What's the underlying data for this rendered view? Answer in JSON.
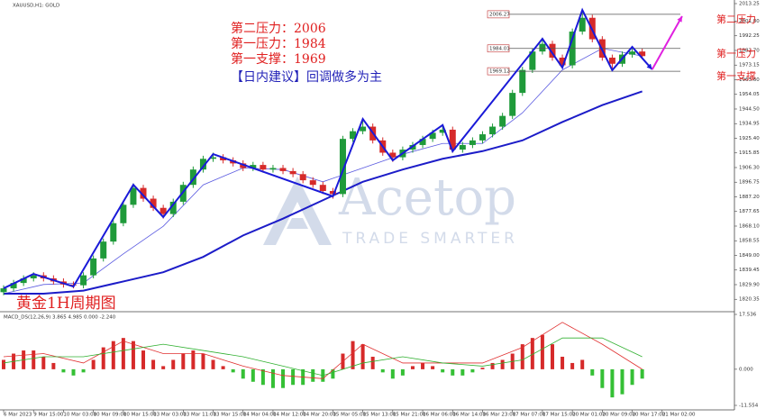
{
  "chart_data": [
    {
      "type": "candlestick",
      "title": "XAUUSD,H1: GOLD",
      "xlim": [
        0,
        69
      ],
      "xticks": [
        {
          "value": 0,
          "label": "6 Mar 2023"
        },
        {
          "value": 3,
          "label": "9 Mar 15:00"
        },
        {
          "value": 6,
          "label": "10 Mar 03:00"
        },
        {
          "value": 9,
          "label": "10 Mar 09:00"
        },
        {
          "value": 12,
          "label": "10 Mar 15:00"
        },
        {
          "value": 15,
          "label": "13 Mar 03:00"
        },
        {
          "value": 18,
          "label": "13 Mar 11:00"
        },
        {
          "value": 21,
          "label": "13 Mar 15:00"
        },
        {
          "value": 24,
          "label": "14 Mar 04:00"
        },
        {
          "value": 27,
          "label": "14 Mar 12:00"
        },
        {
          "value": 30,
          "label": "14 Mar 20:00"
        },
        {
          "value": 33,
          "label": "15 Mar 05:00"
        },
        {
          "value": 36,
          "label": "15 Mar 13:00"
        },
        {
          "value": 39,
          "label": "15 Mar 21:00"
        },
        {
          "value": 42,
          "label": "16 Mar 06:00"
        },
        {
          "value": 45,
          "label": "16 Mar 14:00"
        },
        {
          "value": 48,
          "label": "16 Mar 23:00"
        },
        {
          "value": 51,
          "label": "17 Mar 07:00"
        },
        {
          "value": 54,
          "label": "17 Mar 15:00"
        },
        {
          "value": 57,
          "label": "20 Mar 01:00"
        },
        {
          "value": 60,
          "label": "20 Mar 09:00"
        },
        {
          "value": 63,
          "label": "20 Mar 17:00"
        },
        {
          "value": 66,
          "label": "21 Mar 02:00"
        }
      ],
      "ylim": [
        1812.85,
        2013.25
      ],
      "yticks": [
        2013.25,
        {
          "value": 2001.8,
          "label": "2001.80"
        },
        1992.25,
        {
          "value": 1982.7,
          "label": "1982.70"
        },
        1973.15,
        {
          "value": 1963.6,
          "label": "1963.60"
        },
        1954.05,
        {
          "value": 1944.5,
          "label": "1944.50"
        },
        1934.95,
        {
          "value": 1925.4,
          "label": "1925.40"
        },
        1915.85,
        {
          "value": 1906.3,
          "label": "1906.30"
        },
        1896.75,
        {
          "value": 1887.2,
          "label": "1887.20"
        },
        1877.65,
        {
          "value": 1868.1,
          "label": "1868.10"
        },
        1858.55,
        {
          "value": 1849,
          "label": "1849.00"
        },
        1839.45,
        {
          "value": 1829.9,
          "label": "1829.90"
        },
        1820.35
      ],
      "up_color": "#1f9a3a",
      "down_color": "#d62a2a",
      "open": [
        1825,
        1827.5,
        1831,
        1834,
        1836,
        1834,
        1832,
        1830,
        1829.5,
        1836,
        1847,
        1858,
        1870,
        1882,
        1893,
        1886,
        1880,
        1876,
        1884,
        1895,
        1905,
        1912,
        1913,
        1911,
        1909,
        1906,
        1908,
        1905,
        1906,
        1904,
        1902,
        1898,
        1895,
        1891,
        1889,
        1925,
        1930,
        1933,
        1924,
        1916,
        1913,
        1918,
        1921,
        1925,
        1929,
        1931,
        1918,
        1921,
        1924,
        1928,
        1933,
        1940,
        1955,
        1970,
        1982,
        1987,
        1978,
        1973,
        1995,
        2004,
        1990,
        1978,
        1974,
        1980,
        1982
      ],
      "close": [
        1827.5,
        1831,
        1834,
        1836,
        1834,
        1832,
        1830,
        1829.5,
        1836,
        1847,
        1858,
        1870,
        1882,
        1893,
        1886,
        1880,
        1876,
        1884,
        1895,
        1905,
        1912,
        1913,
        1911,
        1909,
        1906,
        1908,
        1905,
        1906,
        1904,
        1902,
        1898,
        1895,
        1891,
        1889,
        1925,
        1930,
        1933,
        1924,
        1916,
        1913,
        1918,
        1921,
        1925,
        1929,
        1931,
        1918,
        1921,
        1924,
        1928,
        1933,
        1940,
        1955,
        1970,
        1982,
        1987,
        1978,
        1973,
        1995,
        2004,
        1990,
        1978,
        1974,
        1980,
        1982,
        1979
      ],
      "high": [
        1829.5,
        1833,
        1836,
        1838,
        1838,
        1836,
        1834,
        1832,
        1838,
        1849,
        1860,
        1872,
        1884,
        1896,
        1895,
        1888,
        1882,
        1886,
        1897,
        1907,
        1914,
        1916,
        1915,
        1913,
        1911,
        1910,
        1910,
        1908,
        1908,
        1906,
        1904,
        1900,
        1897,
        1893,
        1927,
        1932,
        1938,
        1935,
        1926,
        1918,
        1920,
        1923,
        1927,
        1931,
        1934,
        1933,
        1923,
        1926,
        1930,
        1935,
        1942,
        1957,
        1972,
        1984,
        1991,
        1989,
        1980,
        1997,
        2009,
        2006,
        1992,
        1980,
        1982,
        1985,
        1984
      ],
      "low": [
        1823,
        1825.5,
        1829,
        1832,
        1832,
        1830,
        1828,
        1827.5,
        1827.5,
        1834,
        1845,
        1856,
        1868,
        1880,
        1884,
        1878,
        1873,
        1874,
        1882,
        1893,
        1903,
        1910,
        1909,
        1907,
        1904,
        1904,
        1903,
        1903,
        1902,
        1900,
        1896,
        1893,
        1889,
        1886,
        1887,
        1923,
        1928,
        1922,
        1914,
        1910,
        1911,
        1916,
        1919,
        1923,
        1927,
        1916,
        1916,
        1919,
        1922,
        1926,
        1931,
        1938,
        1953,
        1968,
        1980,
        1976,
        1971,
        1971,
        1993,
        1988,
        1976,
        1970,
        1972,
        1978,
        1977
      ],
      "moving_averages": [
        {
          "color": "#5a5ae0",
          "width": 0.8,
          "x": [
            0,
            4,
            8,
            12,
            16,
            20,
            24,
            28,
            32,
            36,
            40,
            44,
            48,
            52,
            56,
            60,
            64
          ],
          "values": [
            1824,
            1830,
            1831,
            1850,
            1868,
            1895,
            1906,
            1905,
            1897,
            1906,
            1915,
            1922,
            1922,
            1942,
            1970,
            1984,
            1979
          ]
        },
        {
          "color": "#1c1cc8",
          "width": 2,
          "x": [
            0,
            4,
            8,
            12,
            16,
            20,
            24,
            28,
            32,
            36,
            40,
            44,
            48,
            52,
            56,
            60,
            64
          ],
          "values": [
            1824,
            1824,
            1826,
            1832,
            1838,
            1848,
            1862,
            1873,
            1885,
            1897,
            1905,
            1912,
            1917,
            1924,
            1936,
            1947,
            1956
          ]
        }
      ],
      "zigzag": {
        "color": "#1a1ad8",
        "x": [
          0,
          3,
          7,
          13,
          16,
          21,
          33,
          36,
          39,
          44,
          45,
          54,
          56,
          58,
          61,
          63,
          65
        ],
        "values": [
          1827.5,
          1836.9,
          1828.7,
          1895.1,
          1874,
          1915.1,
          1887.5,
          1938,
          1911,
          1934,
          1916.9,
          1990.3,
          1971.5,
          2009.1,
          1969.8,
          1985,
          1970.3
        ]
      },
      "forecast": {
        "color": "#e020e0",
        "x": [
          65,
          68
        ],
        "values": [
          1970.3,
          2005
        ]
      },
      "levels": [
        {
          "value": 2006.27,
          "label": "2006.27",
          "name": "第二压力"
        },
        {
          "value": 1984.01,
          "label": "1984.01",
          "name": "第一压力"
        },
        {
          "value": 1969.12,
          "label": "1969.12",
          "name": "第一支撑"
        }
      ],
      "annotations": [
        "第二压力：2006",
        "第一压力：1984",
        "第一支撑：1969"
      ],
      "advice": "【日内建议】回调做多为主",
      "caption": "黄金1H周期图",
      "watermark": [
        "Acetop",
        "TRADE SMARTER"
      ]
    },
    {
      "type": "macd",
      "title": "MACD_DS(12,26,9) 3.865 4.985 0.000 -2.240",
      "xlim": [
        0,
        69
      ],
      "ylim": [
        -11.554,
        17.536
      ],
      "yticks": [
        17.536,
        {
          "value": 0,
          "label": "0.000"
        },
        -11.554
      ],
      "up_color": "#d62a2a",
      "down_color": "#35c035",
      "values": [
        3,
        5,
        6,
        6,
        4,
        2,
        -1,
        -2,
        -1,
        3,
        7,
        9,
        10,
        9,
        6,
        3,
        1,
        3,
        5,
        6,
        5,
        3,
        1,
        -1,
        -3,
        -4,
        -5,
        -6,
        -6,
        -5,
        -5,
        -4,
        -4,
        -3,
        5,
        9,
        8,
        4,
        -1,
        -3,
        -2,
        1,
        2,
        1,
        -1,
        -2,
        -2,
        -1,
        0.5,
        2,
        3,
        5,
        8,
        10,
        11,
        8,
        4,
        2,
        3,
        -2,
        -6,
        -9,
        -8,
        -5,
        -3
      ],
      "series": [
        {
          "color": "#e03030",
          "x": [
            0,
            4,
            8,
            12,
            16,
            20,
            24,
            28,
            32,
            36,
            40,
            44,
            48,
            52,
            56,
            60,
            64
          ],
          "values": [
            4,
            5,
            2,
            9,
            5,
            5,
            1,
            -2,
            -3,
            8,
            2,
            2,
            2,
            7,
            15,
            8,
            0
          ]
        },
        {
          "color": "#30b030",
          "x": [
            0,
            4,
            8,
            12,
            16,
            20,
            24,
            28,
            32,
            36,
            40,
            44,
            48,
            52,
            56,
            60,
            64
          ],
          "values": [
            2,
            4,
            4,
            6,
            8,
            6,
            4,
            1,
            -2,
            2,
            4,
            2,
            1,
            3,
            10,
            10,
            4
          ]
        }
      ]
    }
  ]
}
